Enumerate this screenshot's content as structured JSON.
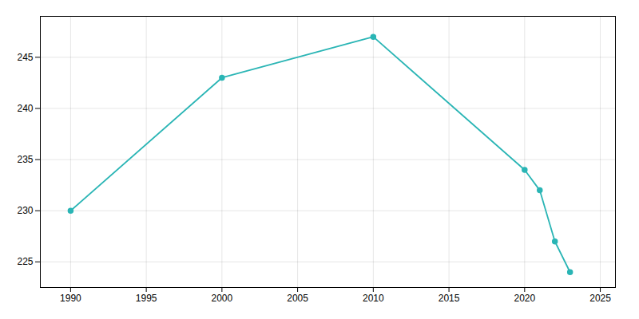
{
  "chart_data": {
    "type": "line",
    "x": [
      1990,
      2000,
      2010,
      2020,
      2021,
      2022,
      2023
    ],
    "values": [
      230,
      243,
      247,
      234,
      232,
      227,
      224
    ],
    "color": "#2ab5b5",
    "marker": "circle",
    "xlim": [
      1988,
      2026
    ],
    "ylim": [
      222.5,
      249
    ],
    "xticks": [
      1990,
      1995,
      2000,
      2005,
      2010,
      2015,
      2020,
      2025
    ],
    "yticks": [
      225,
      230,
      235,
      240,
      245
    ],
    "grid": true
  }
}
